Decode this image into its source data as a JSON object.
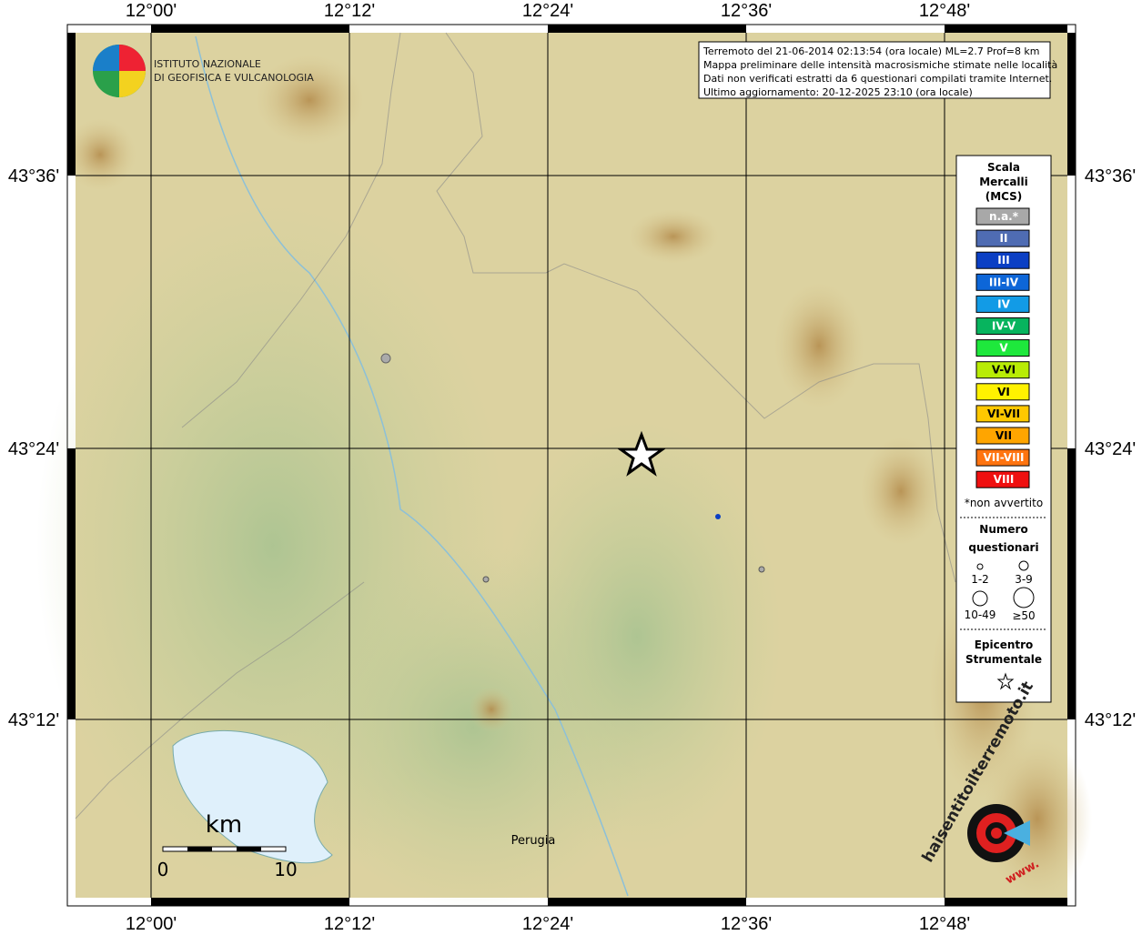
{
  "header": {
    "lines": [
      "Terremoto del 21-06-2014 02:13:54 (ora locale) ML=2.7 Prof=8 km",
      "Mappa preliminare delle intensità macrosismiche stimate nelle località",
      "Dati non verificati estratti da 6 questionari compilati tramite Internet.",
      "Ultimo aggiornamento: 20-12-2025 23:10 (ora locale)"
    ]
  },
  "logo": {
    "lines": [
      "ISTITUTO NAZIONALE",
      "DI GEOFISICA E VULCANOLOGIA"
    ]
  },
  "axes": {
    "lon_labels": [
      "12°00'",
      "12°12'",
      "12°24'",
      "12°36'",
      "12°48'"
    ],
    "lat_labels": [
      "43°36'",
      "43°24'",
      "43°12'"
    ]
  },
  "legend": {
    "title": [
      "Scala",
      "Mercalli",
      "(MCS)"
    ],
    "items": [
      {
        "label": "n.a.*",
        "color": "#a8a8a8"
      },
      {
        "label": "II",
        "color": "#4f6cb3"
      },
      {
        "label": "III",
        "color": "#0b3fc4"
      },
      {
        "label": "III-IV",
        "color": "#0d66d8"
      },
      {
        "label": "IV",
        "color": "#129be6"
      },
      {
        "label": "IV-V",
        "color": "#07b45e"
      },
      {
        "label": "V",
        "color": "#1ee83c"
      },
      {
        "label": "V-VI",
        "color": "#b8ec05"
      },
      {
        "label": "VI",
        "color": "#fff200"
      },
      {
        "label": "VI-VII",
        "color": "#ffc800"
      },
      {
        "label": "VII",
        "color": "#ffa500"
      },
      {
        "label": "VII-VIII",
        "color": "#ff7410"
      },
      {
        "label": "VIII",
        "color": "#ef1010"
      }
    ],
    "note": "*non avvertito",
    "count_title": [
      "Numero",
      "questionari"
    ],
    "count_labels": [
      "1-2",
      "3-9",
      "10-49",
      "≥50"
    ],
    "epicenter_title": [
      "Epicentro",
      "Strumentale"
    ]
  },
  "scale": {
    "unit": "km",
    "start": "0",
    "end": "10"
  },
  "places": [
    "Perugia"
  ],
  "badge": {
    "site": "haisentitoilterremoto.it",
    "www": "www."
  }
}
